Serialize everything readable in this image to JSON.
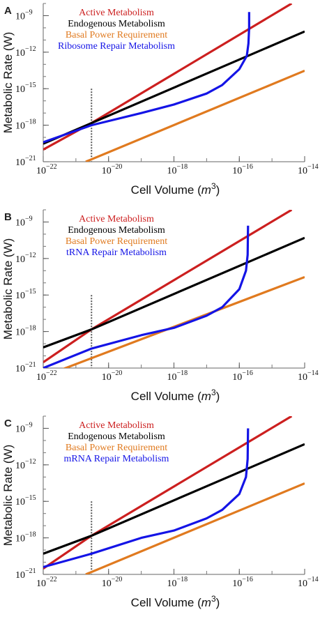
{
  "figure": {
    "colors": {
      "active": "#cc1f1f",
      "endogenous": "#000000",
      "basal": "#e07a1f",
      "repair": "#1414e6",
      "marker": "#555555"
    }
  },
  "chart_data": [
    {
      "type": "line",
      "panel": "A",
      "xlabel": "Cell Volume (m3)",
      "ylabel": "Metabolic Rate (W)",
      "x_scale": "log",
      "y_scale": "log",
      "xlim": [
        1e-22,
        1e-14
      ],
      "ylim": [
        1e-21,
        1e-08
      ],
      "x_ticks": [
        {
          "base": "10",
          "exp": "−22",
          "value": 1e-22
        },
        {
          "base": "10",
          "exp": "−20",
          "value": 1e-20
        },
        {
          "base": "10",
          "exp": "−18",
          "value": 1e-18
        },
        {
          "base": "10",
          "exp": "−16",
          "value": 1e-16
        },
        {
          "base": "10",
          "exp": "−14",
          "value": 1e-14
        }
      ],
      "y_ticks": [
        {
          "base": "10",
          "exp": "−21",
          "value": 1e-21
        },
        {
          "base": "10",
          "exp": "−18",
          "value": 1e-18
        },
        {
          "base": "10",
          "exp": "−15",
          "value": 1e-15
        },
        {
          "base": "10",
          "exp": "−12",
          "value": 1e-12
        },
        {
          "base": "10",
          "exp": "−9",
          "value": 1e-09
        }
      ],
      "marker_x": 3e-21,
      "legend_position": "top-left",
      "series": [
        {
          "name": "Active Metabolism",
          "color": "#cc1f1f",
          "x": [
            1e-22,
            3e-21,
            4e-15
          ],
          "y": [
            1e-20,
            1.5e-18,
            1e-08
          ]
        },
        {
          "name": "Endogenous Metabolism",
          "color": "#000000",
          "x": [
            1e-22,
            3e-21,
            1e-14
          ],
          "y": [
            3e-20,
            1.5e-18,
            5e-11
          ]
        },
        {
          "name": "Basal Power Requirement",
          "color": "#e07a1f",
          "x": [
            2e-21,
            1e-14
          ],
          "y": [
            1e-21,
            3e-14
          ]
        },
        {
          "name": "Ribosome Repair Metabolism",
          "color": "#1414e6",
          "x": [
            1e-22,
            3e-21,
            1e-19,
            1e-18,
            1e-17,
            3e-17,
            1e-16,
            1.7e-16,
            1.9e-16,
            2e-16,
            2e-16
          ],
          "y": [
            4e-20,
            1e-18,
            1e-17,
            5e-17,
            4e-16,
            2e-15,
            4e-14,
            5e-13,
            5e-12,
            1e-10,
            2e-09
          ]
        }
      ]
    },
    {
      "type": "line",
      "panel": "B",
      "xlabel": "Cell Volume (m3)",
      "ylabel": "Metabolic Rate (W)",
      "x_scale": "log",
      "y_scale": "log",
      "xlim": [
        1e-22,
        1e-14
      ],
      "ylim": [
        1e-21,
        1e-08
      ],
      "x_ticks": [
        {
          "base": "10",
          "exp": "−22",
          "value": 1e-22
        },
        {
          "base": "10",
          "exp": "−20",
          "value": 1e-20
        },
        {
          "base": "10",
          "exp": "−18",
          "value": 1e-18
        },
        {
          "base": "10",
          "exp": "−16",
          "value": 1e-16
        },
        {
          "base": "10",
          "exp": "−14",
          "value": 1e-14
        }
      ],
      "y_ticks": [
        {
          "base": "10",
          "exp": "−21",
          "value": 1e-21
        },
        {
          "base": "10",
          "exp": "−18",
          "value": 1e-18
        },
        {
          "base": "10",
          "exp": "−15",
          "value": 1e-15
        },
        {
          "base": "10",
          "exp": "−12",
          "value": 1e-12
        },
        {
          "base": "10",
          "exp": "−9",
          "value": 1e-09
        }
      ],
      "marker_x": 3e-21,
      "legend_position": "top-left",
      "series": [
        {
          "name": "Active Metabolism",
          "color": "#cc1f1f",
          "x": [
            1e-22,
            3e-21,
            4e-15
          ],
          "y": [
            3e-21,
            1.5e-18,
            1e-08
          ]
        },
        {
          "name": "Endogenous Metabolism",
          "color": "#000000",
          "x": [
            1e-22,
            3e-21,
            1e-14
          ],
          "y": [
            5e-20,
            1.5e-18,
            5e-11
          ]
        },
        {
          "name": "Basal Power Requirement",
          "color": "#e07a1f",
          "x": [
            1e-22,
            1e-14
          ],
          "y": [
            2e-22,
            3e-14
          ]
        },
        {
          "name": "tRNA Repair Metabolism",
          "color": "#1414e6",
          "x": [
            1e-22,
            3e-21,
            1e-19,
            1e-18,
            1e-17,
            3e-17,
            1e-16,
            1.6e-16,
            1.8e-16,
            1.85e-16
          ],
          "y": [
            1e-21,
            4e-20,
            5e-19,
            2e-18,
            2e-17,
            1e-16,
            3e-15,
            1e-13,
            2e-12,
            5e-10
          ]
        }
      ]
    },
    {
      "type": "line",
      "panel": "C",
      "xlabel": "Cell Volume (m3)",
      "ylabel": "Metabolic Rate (W)",
      "x_scale": "log",
      "y_scale": "log",
      "xlim": [
        1e-22,
        1e-14
      ],
      "ylim": [
        1e-21,
        1e-08
      ],
      "x_ticks": [
        {
          "base": "10",
          "exp": "−22",
          "value": 1e-22
        },
        {
          "base": "10",
          "exp": "−20",
          "value": 1e-20
        },
        {
          "base": "10",
          "exp": "−18",
          "value": 1e-18
        },
        {
          "base": "10",
          "exp": "−16",
          "value": 1e-16
        },
        {
          "base": "10",
          "exp": "−14",
          "value": 1e-14
        }
      ],
      "y_ticks": [
        {
          "base": "10",
          "exp": "−21",
          "value": 1e-21
        },
        {
          "base": "10",
          "exp": "−18",
          "value": 1e-18
        },
        {
          "base": "10",
          "exp": "−15",
          "value": 1e-15
        },
        {
          "base": "10",
          "exp": "−12",
          "value": 1e-12
        },
        {
          "base": "10",
          "exp": "−9",
          "value": 1e-09
        }
      ],
      "marker_x": 3e-21,
      "legend_position": "top-left",
      "series": [
        {
          "name": "Active Metabolism",
          "color": "#cc1f1f",
          "x": [
            1e-22,
            3e-21,
            4e-15
          ],
          "y": [
            3e-21,
            1.5e-18,
            1e-08
          ]
        },
        {
          "name": "Endogenous Metabolism",
          "color": "#000000",
          "x": [
            1e-22,
            3e-21,
            1e-14
          ],
          "y": [
            5e-20,
            1.5e-18,
            5e-11
          ]
        },
        {
          "name": "Basal Power Requirement",
          "color": "#e07a1f",
          "x": [
            2e-21,
            1e-14
          ],
          "y": [
            1e-21,
            3e-14
          ]
        },
        {
          "name": "mRNA Repair Metabolism",
          "color": "#1414e6",
          "x": [
            1e-22,
            3e-21,
            1e-19,
            1e-18,
            1e-17,
            3e-17,
            1e-16,
            1.6e-16,
            1.8e-16,
            1.85e-16
          ],
          "y": [
            4e-21,
            5e-20,
            1e-18,
            4e-18,
            4e-17,
            2e-16,
            4e-15,
            1e-13,
            3e-12,
            1e-09
          ]
        }
      ]
    }
  ]
}
